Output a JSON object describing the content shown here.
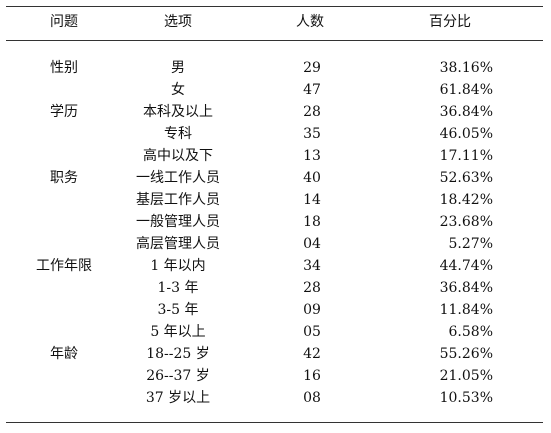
{
  "header": {
    "question": "问题",
    "option": "选项",
    "count": "人数",
    "percent": "百分比"
  },
  "rows": [
    {
      "question": "性别",
      "option": "男",
      "count": "29",
      "percent": "38.16%"
    },
    {
      "question": "",
      "option": "女",
      "count": "47",
      "percent": "61.84%"
    },
    {
      "question": "学历",
      "option": "本科及以上",
      "count": "28",
      "percent": "36.84%"
    },
    {
      "question": "",
      "option": "专科",
      "count": "35",
      "percent": "46.05%"
    },
    {
      "question": "",
      "option": "高中以及下",
      "count": "13",
      "percent": "17.11%"
    },
    {
      "question": "职务",
      "option": "一线工作人员",
      "count": "40",
      "percent": "52.63%"
    },
    {
      "question": "",
      "option": "基层工作人员",
      "count": "14",
      "percent": "18.42%"
    },
    {
      "question": "",
      "option": "一般管理人员",
      "count": "18",
      "percent": "23.68%"
    },
    {
      "question": "",
      "option": "高层管理人员",
      "count": "04",
      "percent": "5.27%"
    },
    {
      "question": "工作年限",
      "option": "1 年以内",
      "count": "34",
      "percent": "44.74%"
    },
    {
      "question": "",
      "option": "1-3 年",
      "count": "28",
      "percent": "36.84%"
    },
    {
      "question": "",
      "option": "3-5 年",
      "count": "09",
      "percent": "11.84%"
    },
    {
      "question": "",
      "option": "5 年以上",
      "count": "05",
      "percent": "6.58%"
    },
    {
      "question": "年龄",
      "option": "18--25 岁",
      "count": "42",
      "percent": "55.26%"
    },
    {
      "question": "",
      "option": "26--37 岁",
      "count": "16",
      "percent": "21.05%"
    },
    {
      "question": "",
      "option": "37 岁以上",
      "count": "08",
      "percent": "10.53%"
    }
  ]
}
